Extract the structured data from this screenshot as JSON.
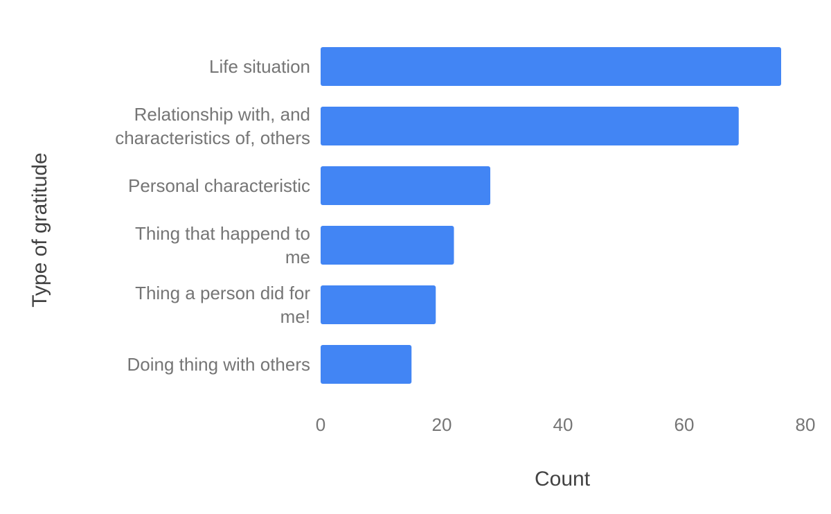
{
  "chart_data": {
    "type": "bar",
    "orientation": "horizontal",
    "categories": [
      [
        "Life situation"
      ],
      [
        "Relationship with, and",
        "characteristics of, others"
      ],
      [
        "Personal characteristic"
      ],
      [
        "Thing that happend to",
        "me"
      ],
      [
        "Thing a person did for",
        "me!"
      ],
      [
        "Doing thing with others"
      ]
    ],
    "values": [
      76,
      69,
      28,
      22,
      19,
      15
    ],
    "xlabel": "Count",
    "ylabel": "Type of gratitude",
    "xlim": [
      0,
      80
    ],
    "xticks": [
      "0",
      "20",
      "40",
      "60",
      "80"
    ],
    "grid": false,
    "legend": "none",
    "bar_color": "#4285F4"
  }
}
